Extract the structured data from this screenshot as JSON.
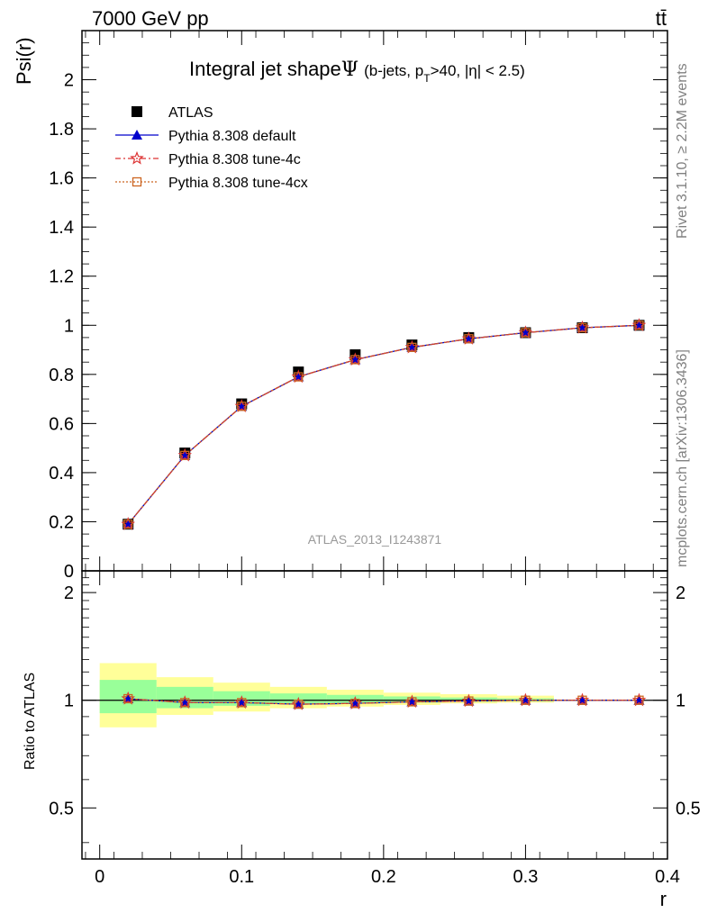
{
  "header": {
    "energy_label": "7000 GeV pp",
    "process_label": "tt̄"
  },
  "side_labels": {
    "rivet": "Rivet 3.1.10, ≥ 2.2M events",
    "mcplots": "mcplots.cern.ch [arXiv:1306.3436]"
  },
  "chart_data": [
    {
      "type": "line",
      "title_main": "Integral jet shape",
      "title_symbol": "Ψ",
      "title_sub": "(b-jets, p",
      "title_sub_T": "T",
      "title_sub_rest": ">40, |η| < 2.5)",
      "ylabel": "Psi(r)",
      "analysis_label": "ATLAS_2013_I1243871",
      "xlim": [
        -0.0125,
        0.4
      ],
      "ylim": [
        0,
        2.2
      ],
      "yticks": [
        0,
        0.2,
        0.4,
        0.6,
        0.8,
        1,
        1.2,
        1.4,
        1.6,
        1.8,
        2
      ],
      "ytick_labels": [
        "0",
        "0.2",
        "0.4",
        "0.6",
        "0.8",
        "1",
        "1.2",
        "1.4",
        "1.6",
        "1.8",
        "2"
      ],
      "x": [
        0.02,
        0.06,
        0.1,
        0.14,
        0.18,
        0.22,
        0.26,
        0.3,
        0.34,
        0.38
      ],
      "series": [
        {
          "name": "ATLAS",
          "color": "#000000",
          "marker": "square",
          "values": [
            0.19,
            0.48,
            0.68,
            0.81,
            0.88,
            0.92,
            0.95,
            0.97,
            0.99,
            1.0
          ]
        },
        {
          "name": "Pythia 8.308 default",
          "color": "#0000cc",
          "marker": "triangle",
          "values": [
            0.19,
            0.47,
            0.67,
            0.79,
            0.86,
            0.91,
            0.945,
            0.97,
            0.99,
            1.0
          ]
        },
        {
          "name": "Pythia 8.308 tune-4c",
          "color": "#dd3333",
          "marker": "star",
          "values": [
            0.19,
            0.47,
            0.67,
            0.79,
            0.86,
            0.91,
            0.945,
            0.97,
            0.99,
            1.0
          ]
        },
        {
          "name": "Pythia 8.308 tune-4cx",
          "color": "#cc6622",
          "marker": "open-square",
          "values": [
            0.19,
            0.47,
            0.67,
            0.79,
            0.86,
            0.91,
            0.945,
            0.97,
            0.99,
            1.0
          ]
        }
      ]
    },
    {
      "type": "line",
      "ylabel": "Ratio to ATLAS",
      "xlabel": "r",
      "xlim": [
        -0.0125,
        0.4
      ],
      "ylim": [
        0.36,
        2.3
      ],
      "y_scale": "log",
      "xticks": [
        0,
        0.1,
        0.2,
        0.3,
        0.4
      ],
      "xtick_labels": [
        "0",
        "0.1",
        "0.2",
        "0.3",
        "0.4"
      ],
      "yticks": [
        0.5,
        1,
        2
      ],
      "ytick_labels": [
        "0.5",
        "1",
        "2"
      ],
      "bands": {
        "x_edges": [
          0.0,
          0.04,
          0.08,
          0.12,
          0.16,
          0.2,
          0.24,
          0.28,
          0.32
        ],
        "yellow_low": [
          0.84,
          0.91,
          0.93,
          0.95,
          0.96,
          0.97,
          0.98,
          0.985
        ],
        "yellow_high": [
          1.27,
          1.16,
          1.12,
          1.09,
          1.07,
          1.05,
          1.04,
          1.03
        ],
        "green_low": [
          0.92,
          0.95,
          0.965,
          0.975,
          0.98,
          0.985,
          0.99,
          0.993
        ],
        "green_high": [
          1.14,
          1.09,
          1.06,
          1.045,
          1.035,
          1.025,
          1.018,
          1.012
        ]
      },
      "x": [
        0.02,
        0.06,
        0.1,
        0.14,
        0.18,
        0.22,
        0.26,
        0.3,
        0.34,
        0.38
      ],
      "series": [
        {
          "name": "Pythia 8.308 default",
          "color": "#0000cc",
          "marker": "triangle",
          "values": [
            1.01,
            0.985,
            0.985,
            0.975,
            0.98,
            0.99,
            0.995,
            1.0,
            1.0,
            1.0
          ]
        },
        {
          "name": "Pythia 8.308 tune-4c",
          "color": "#dd3333",
          "marker": "star",
          "values": [
            1.01,
            0.985,
            0.985,
            0.975,
            0.98,
            0.99,
            0.995,
            1.0,
            1.0,
            1.0
          ]
        },
        {
          "name": "Pythia 8.308 tune-4cx",
          "color": "#cc6622",
          "marker": "open-square",
          "values": [
            1.01,
            0.985,
            0.985,
            0.975,
            0.98,
            0.99,
            0.995,
            1.0,
            1.0,
            1.0
          ]
        }
      ]
    }
  ]
}
